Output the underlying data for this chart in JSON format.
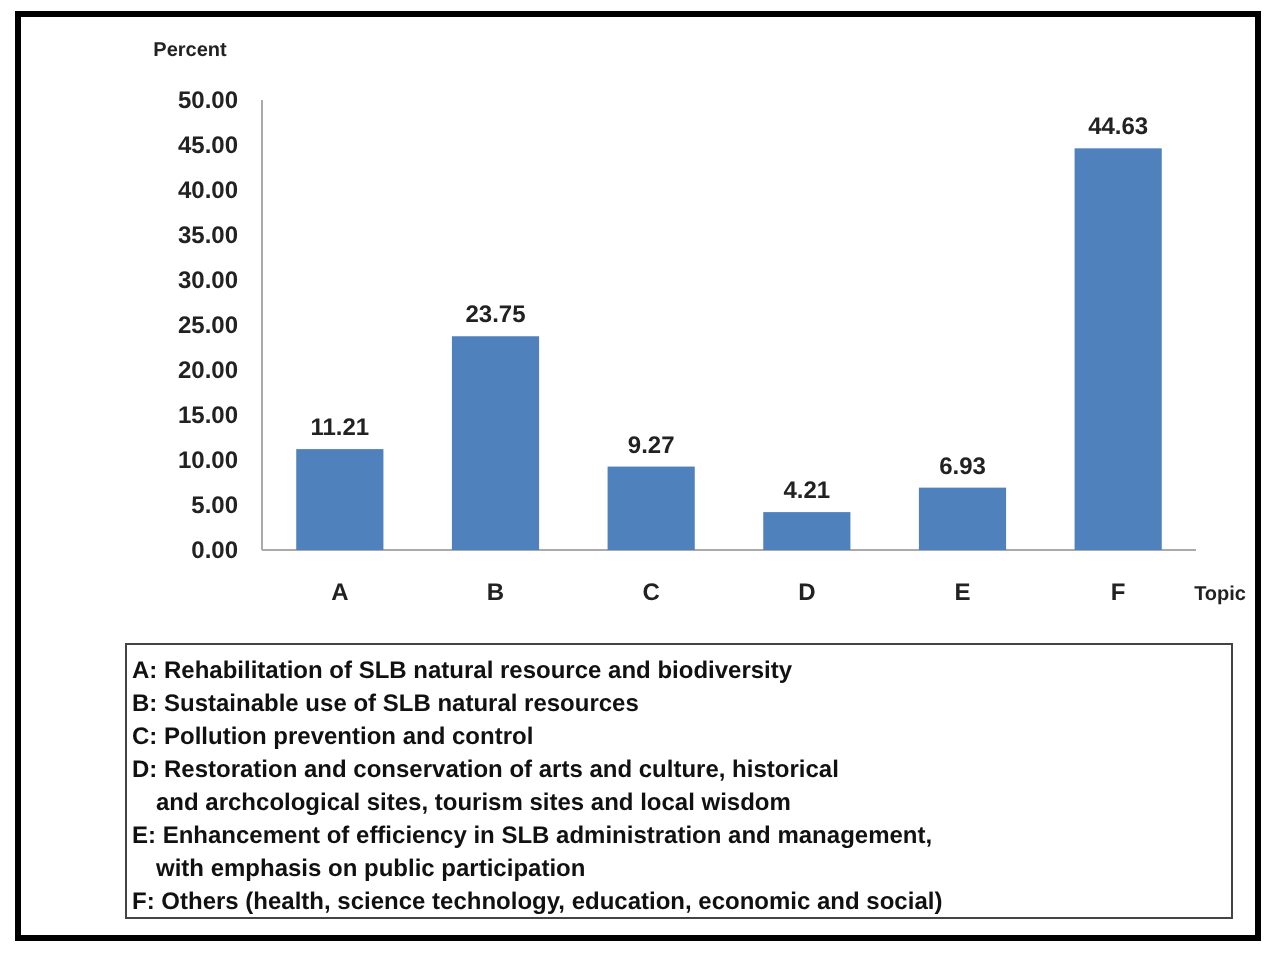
{
  "chart_data": {
    "type": "bar",
    "ylabel": "Percent",
    "xlabel": "Topic",
    "categories": [
      "A",
      "B",
      "C",
      "D",
      "E",
      "F"
    ],
    "values": [
      11.21,
      23.75,
      9.27,
      4.21,
      6.93,
      44.63
    ],
    "color": "#4f81bd",
    "ylim": [
      0,
      50
    ],
    "yticks": [
      {
        "value": 0,
        "label": "0.00"
      },
      {
        "value": 5,
        "label": "5.00"
      },
      {
        "value": 10,
        "label": "10.00"
      },
      {
        "value": 15,
        "label": "15.00"
      },
      {
        "value": 20,
        "label": "20.00"
      },
      {
        "value": 25,
        "label": "25.00"
      },
      {
        "value": 30,
        "label": "30.00"
      },
      {
        "value": 35,
        "label": "35.00"
      },
      {
        "value": 40,
        "label": "40.00"
      },
      {
        "value": 45,
        "label": "45.00"
      },
      {
        "value": 50,
        "label": "50.00"
      }
    ],
    "data_labels": true,
    "grid": false,
    "annotations": [
      "A:  Rehabilitation of SLB natural resource and biodiversity",
      "B:  Sustainable use of SLB natural resources",
      "C:  Pollution prevention and control",
      "D: Restoration and conservation of arts and culture, historical\nand archcological sites, tourism sites and local wisdom",
      "E: Enhancement of efficiency in SLB administration and management,\nwith emphasis on public participation",
      "F: Others (health, science technology, education, economic and social)"
    ]
  }
}
